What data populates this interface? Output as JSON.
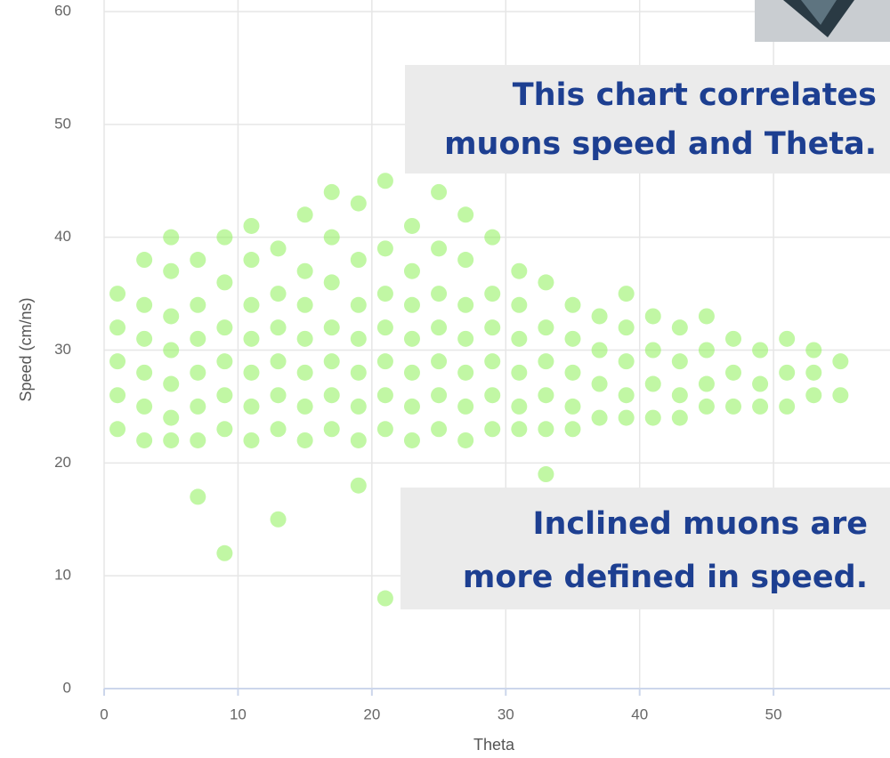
{
  "chart_data": {
    "type": "scatter",
    "x_label": "Theta",
    "y_label": "Speed (cm/ns)",
    "color": "#8ef05a",
    "grid": true,
    "xlim": [
      0,
      58.5
    ],
    "xticks": [
      0,
      10,
      20,
      30,
      40,
      50
    ],
    "ylim": [
      0,
      60
    ],
    "yticks": [
      0,
      10,
      20,
      30,
      40,
      50,
      60
    ],
    "x": [
      1,
      1,
      1,
      1,
      1,
      3,
      3,
      3,
      3,
      3,
      3,
      5,
      5,
      5,
      5,
      5,
      5,
      5,
      7,
      7,
      7,
      7,
      7,
      7,
      7,
      9,
      9,
      9,
      9,
      9,
      9,
      9,
      11,
      11,
      11,
      11,
      11,
      11,
      11,
      13,
      13,
      13,
      13,
      13,
      13,
      13,
      15,
      15,
      15,
      15,
      15,
      15,
      15,
      17,
      17,
      17,
      17,
      17,
      17,
      17,
      19,
      19,
      19,
      19,
      19,
      19,
      19,
      19,
      21,
      21,
      21,
      21,
      21,
      21,
      21,
      21,
      23,
      23,
      23,
      23,
      23,
      23,
      23,
      25,
      25,
      25,
      25,
      25,
      25,
      25,
      25,
      27,
      27,
      27,
      27,
      27,
      27,
      27,
      29,
      29,
      29,
      29,
      29,
      29,
      31,
      31,
      31,
      31,
      31,
      31,
      33,
      33,
      33,
      33,
      33,
      33,
      35,
      35,
      35,
      35,
      35,
      37,
      37,
      37,
      37,
      39,
      39,
      39,
      39,
      39,
      41,
      41,
      41,
      41,
      43,
      43,
      43,
      43,
      45,
      45,
      45,
      45,
      47,
      47,
      47,
      49,
      49,
      49,
      51,
      51,
      51,
      53,
      53,
      53,
      55,
      55
    ],
    "values": [
      23,
      26,
      29,
      32,
      35,
      22,
      25,
      28,
      31,
      34,
      38,
      22,
      24,
      27,
      30,
      33,
      37,
      40,
      22,
      25,
      28,
      31,
      34,
      38,
      17,
      23,
      26,
      29,
      32,
      36,
      40,
      12,
      22,
      25,
      28,
      31,
      34,
      38,
      41,
      23,
      26,
      29,
      32,
      35,
      39,
      15,
      22,
      25,
      28,
      31,
      34,
      37,
      42,
      23,
      26,
      29,
      32,
      36,
      40,
      44,
      22,
      25,
      28,
      31,
      34,
      38,
      43,
      18,
      23,
      26,
      29,
      32,
      35,
      39,
      45,
      8,
      22,
      25,
      28,
      31,
      34,
      37,
      41,
      23,
      26,
      29,
      32,
      35,
      39,
      44,
      14,
      22,
      25,
      28,
      31,
      34,
      38,
      42,
      23,
      26,
      29,
      32,
      35,
      40,
      23,
      25,
      28,
      31,
      34,
      37,
      23,
      26,
      29,
      32,
      36,
      19,
      23,
      25,
      28,
      31,
      34,
      24,
      27,
      30,
      33,
      24,
      26,
      29,
      32,
      35,
      24,
      27,
      30,
      33,
      24,
      26,
      29,
      32,
      25,
      27,
      30,
      33,
      25,
      28,
      31,
      25,
      27,
      30,
      25,
      28,
      31,
      26,
      28,
      30,
      26,
      29
    ]
  },
  "annotations": [
    [
      "This chart correlates",
      "muons speed and Theta."
    ],
    [
      "Inclined muons are",
      "more defined in speed."
    ]
  ]
}
